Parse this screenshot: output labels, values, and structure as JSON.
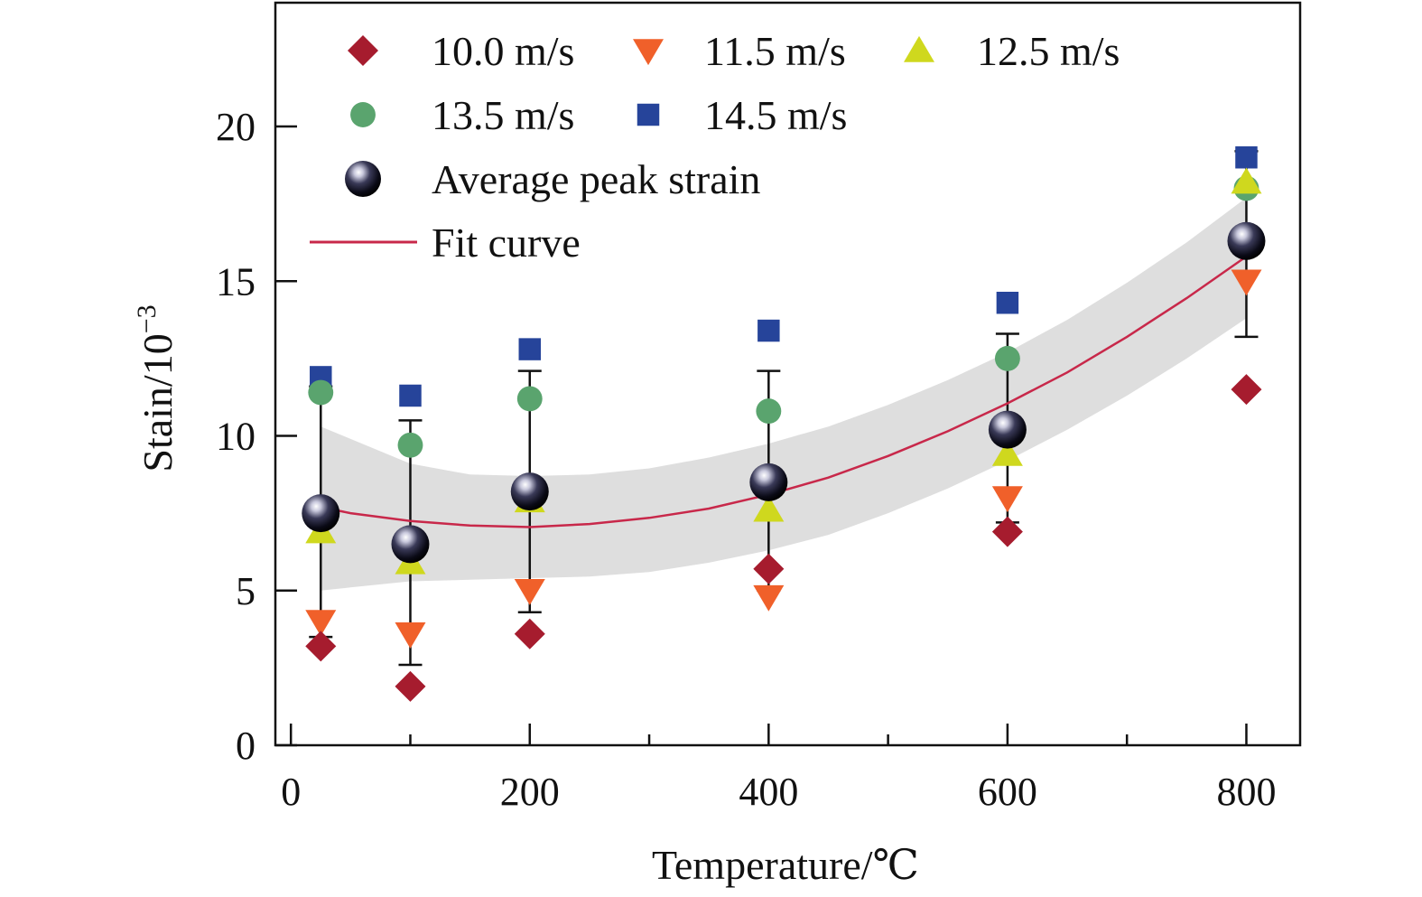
{
  "chart_data": {
    "type": "scatter",
    "title": "",
    "xlabel": "Temperature/℃",
    "ylabel_main": "Stain/10",
    "ylabel_exp": "−3",
    "xlim": [
      -13,
      845
    ],
    "ylim": [
      0,
      24
    ],
    "xticks": [
      0,
      200,
      400,
      600,
      800
    ],
    "xtick_labels": [
      "0",
      "200",
      "400",
      "600",
      "800"
    ],
    "yticks": [
      0,
      5,
      10,
      15,
      20
    ],
    "ytick_labels": [
      "0",
      "5",
      "10",
      "15",
      "20"
    ],
    "x_minor_ticks": [
      100,
      300,
      500,
      700
    ],
    "grid": false,
    "legend_position": "top-left",
    "series": [
      {
        "name": "10.0 m/s",
        "marker": "diamond",
        "color": "#a61c2e",
        "points": [
          [
            25,
            3.2
          ],
          [
            100,
            1.9
          ],
          [
            200,
            3.6
          ],
          [
            400,
            5.7
          ],
          [
            600,
            6.9
          ],
          [
            800,
            11.5
          ]
        ]
      },
      {
        "name": "11.5 m/s",
        "marker": "triangle-down",
        "color": "#f0602a",
        "points": [
          [
            25,
            4.0
          ],
          [
            100,
            3.6
          ],
          [
            200,
            5.0
          ],
          [
            400,
            4.8
          ],
          [
            600,
            8.0
          ],
          [
            800,
            15.0
          ]
        ]
      },
      {
        "name": "12.5 m/s",
        "marker": "triangle-up",
        "color": "#cfd81e",
        "points": [
          [
            25,
            6.9
          ],
          [
            100,
            5.9
          ],
          [
            200,
            7.9
          ],
          [
            400,
            7.6
          ],
          [
            600,
            9.4
          ],
          [
            800,
            18.2
          ]
        ]
      },
      {
        "name": "13.5 m/s",
        "marker": "circle",
        "color": "#5aa46e",
        "points": [
          [
            25,
            11.4
          ],
          [
            100,
            9.7
          ],
          [
            200,
            11.2
          ],
          [
            400,
            10.8
          ],
          [
            600,
            12.5
          ],
          [
            800,
            18.0
          ]
        ]
      },
      {
        "name": "14.5 m/s",
        "marker": "square",
        "color": "#26449a",
        "points": [
          [
            25,
            11.9
          ],
          [
            100,
            11.3
          ],
          [
            200,
            12.8
          ],
          [
            400,
            13.4
          ],
          [
            600,
            14.3
          ],
          [
            800,
            19.0
          ]
        ]
      },
      {
        "name": "Average peak strain",
        "marker": "sphere",
        "color": "#0d0d1a",
        "points": [
          [
            25,
            7.5
          ],
          [
            100,
            6.5
          ],
          [
            200,
            8.2
          ],
          [
            400,
            8.5
          ],
          [
            600,
            10.2
          ],
          [
            800,
            16.3
          ]
        ],
        "error": [
          [
            3.5,
            11.6
          ],
          [
            2.6,
            10.5
          ],
          [
            4.3,
            12.1
          ],
          [
            5.0,
            12.1
          ],
          [
            7.2,
            13.3
          ],
          [
            13.2,
            19.2
          ]
        ]
      }
    ],
    "fit_curve": {
      "name": "Fit curve",
      "color": "#c8284a",
      "x": [
        25,
        50,
        100,
        150,
        200,
        250,
        300,
        350,
        400,
        450,
        500,
        550,
        600,
        650,
        700,
        750,
        800
      ],
      "y": [
        7.7,
        7.5,
        7.25,
        7.1,
        7.05,
        7.15,
        7.35,
        7.65,
        8.1,
        8.65,
        9.35,
        10.15,
        11.05,
        12.05,
        13.2,
        14.45,
        15.8
      ],
      "band_upper": [
        10.3,
        9.9,
        9.1,
        8.75,
        8.7,
        8.75,
        8.95,
        9.3,
        9.75,
        10.3,
        11.0,
        11.8,
        12.7,
        13.75,
        14.95,
        16.25,
        17.7
      ],
      "band_lower": [
        5.0,
        5.1,
        5.3,
        5.35,
        5.4,
        5.45,
        5.6,
        5.9,
        6.3,
        6.8,
        7.5,
        8.3,
        9.2,
        10.2,
        11.3,
        12.5,
        13.8
      ],
      "band_color": "#d8d8d8"
    }
  }
}
